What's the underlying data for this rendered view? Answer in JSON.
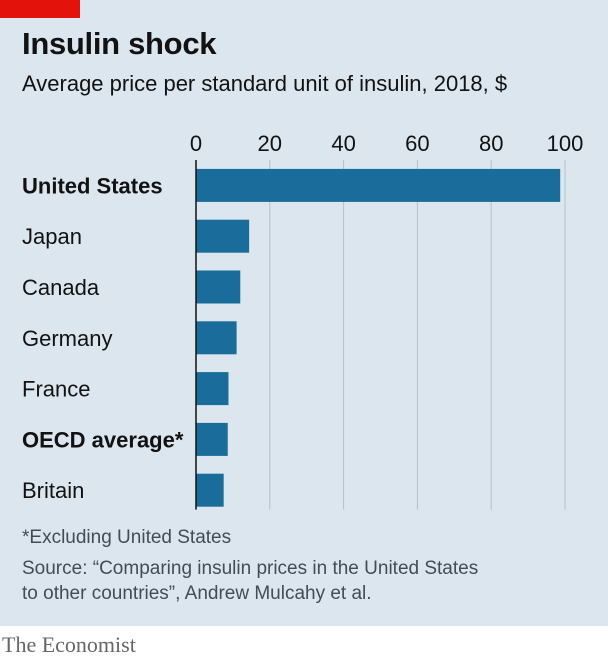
{
  "header": {
    "title": "Insulin shock",
    "subtitle": "Average price per standard unit of insulin, 2018, $"
  },
  "chart_data": {
    "type": "bar",
    "orientation": "horizontal",
    "categories": [
      "United States",
      "Japan",
      "Canada",
      "Germany",
      "France",
      "OECD average*",
      "Britain"
    ],
    "bold_categories": [
      "United States",
      "OECD average*"
    ],
    "values": [
      98.7,
      14.4,
      12.0,
      11.0,
      8.8,
      8.6,
      7.5
    ],
    "xlim": [
      0,
      100
    ],
    "x_ticks": [
      "0",
      "20",
      "40",
      "60",
      "80",
      "100"
    ],
    "grid": "vertical",
    "colors": {
      "bar": "#1a6c9b",
      "grid": "#b4c0c9",
      "axis": "#121212",
      "background": "#dbe6ee",
      "accent": "#e3120b"
    }
  },
  "footer": {
    "footnote": "*Excluding United States",
    "source_line1": "Source: “Comparing insulin prices in the United States",
    "source_line2": "to other countries”, Andrew Mulcahy et al.",
    "brand": "The Economist"
  }
}
